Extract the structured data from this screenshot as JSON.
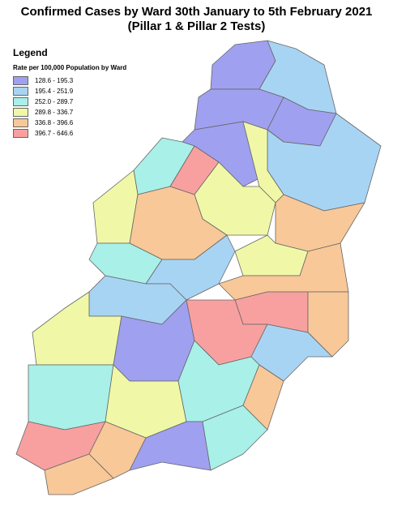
{
  "title": "Confirmed Cases by Ward 30th January to 5th February 2021",
  "subtitle": "(Pillar 1 & Pillar 2 Tests)",
  "legend": {
    "title": "Legend",
    "subtitle": "Rate per 100,000 Population by Ward",
    "items": [
      {
        "label": "128.6 - 195.3",
        "color": "#a0a0f0"
      },
      {
        "label": "195.4 - 251.9",
        "color": "#a8d4f4"
      },
      {
        "label": "252.0 - 289.7",
        "color": "#a8f0e8"
      },
      {
        "label": "289.8 - 336.7",
        "color": "#f0f8a8"
      },
      {
        "label": "336.8 - 396.6",
        "color": "#f8c898"
      },
      {
        "label": "396.7 - 646.6",
        "color": "#f8a0a0"
      }
    ]
  }
}
